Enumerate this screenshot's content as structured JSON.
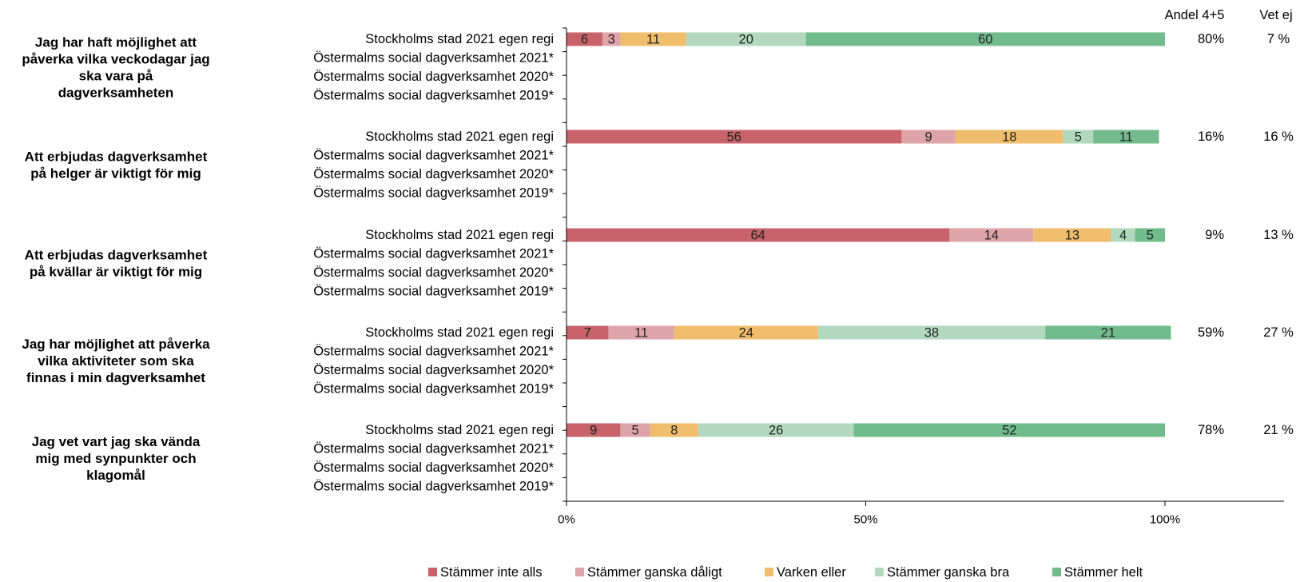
{
  "chart_data": {
    "type": "stacked-bar-horizontal",
    "xlim": [
      0,
      100
    ],
    "x_ticks": [
      "0%",
      "50%",
      "100%"
    ],
    "column_headers": {
      "share": "Andel 4+5",
      "dont_know": "Vet ej"
    },
    "row_labels": [
      "Stockholms stad 2021 egen regi",
      "Östermalms social dagverksamhet 2021*",
      "Östermalms social dagverksamhet 2020*",
      "Östermalms social dagverksamhet 2019*"
    ],
    "series": [
      {
        "name": "Stämmer inte alls",
        "color": "#c8636b"
      },
      {
        "name": "Stämmer ganska dåligt",
        "color": "#dfa4a9"
      },
      {
        "name": "Varken eller",
        "color": "#efbd6c"
      },
      {
        "name": "Stämmer ganska bra",
        "color": "#b2d9bd"
      },
      {
        "name": "Stämmer helt",
        "color": "#72bb8d"
      }
    ],
    "groups": [
      {
        "question": "Jag har haft möjlighet att påverka vilka veckodagar jag ska vara på dagverksamheten",
        "question_lines": [
          "Jag har haft möjlighet att",
          "påverka vilka veckodagar jag",
          "ska vara på",
          "dagverksamheten"
        ],
        "values": [
          6,
          3,
          11,
          20,
          60
        ],
        "share": "80%",
        "dont_know": "7 %"
      },
      {
        "question": "Att erbjudas dagverksamhet på helger är viktigt för mig",
        "question_lines": [
          "Att erbjudas dagverksamhet",
          "på helger är viktigt för mig"
        ],
        "values": [
          56,
          9,
          18,
          5,
          11
        ],
        "share": "16%",
        "dont_know": "16 %"
      },
      {
        "question": "Att erbjudas dagverksamhet på kvällar är viktigt för mig",
        "question_lines": [
          "Att erbjudas dagverksamhet",
          "på kvällar är viktigt för mig"
        ],
        "values": [
          64,
          14,
          13,
          4,
          5
        ],
        "share": "9%",
        "dont_know": "13 %"
      },
      {
        "question": "Jag har möjlighet att påverka vilka aktiviteter som ska finnas i min dagverksamhet",
        "question_lines": [
          "Jag har möjlighet att påverka",
          "vilka aktiviteter som ska",
          "finnas i min dagverksamhet"
        ],
        "values": [
          7,
          11,
          24,
          38,
          21
        ],
        "share": "59%",
        "dont_know": "27 %"
      },
      {
        "question": "Jag vet vart jag ska vända mig med synpunkter och klagomål",
        "question_lines": [
          "Jag vet vart jag ska vända",
          "mig med synpunkter och",
          "klagomål"
        ],
        "values": [
          9,
          5,
          8,
          26,
          52
        ],
        "share": "78%",
        "dont_know": "21 %"
      }
    ]
  }
}
